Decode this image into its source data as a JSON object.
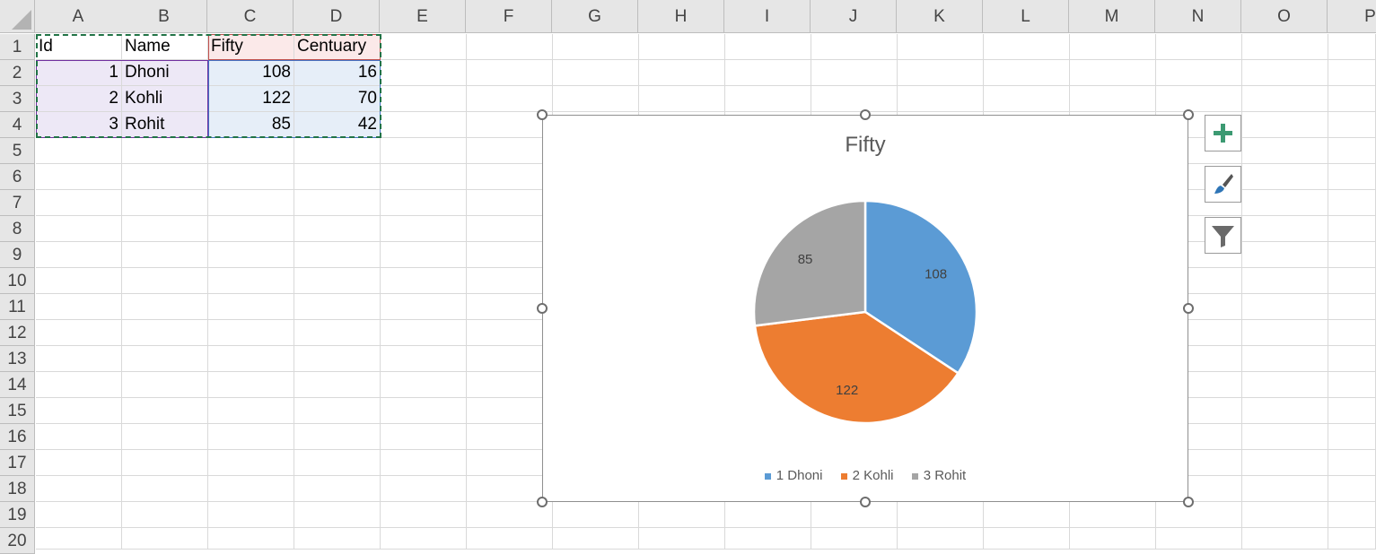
{
  "columns": [
    "A",
    "B",
    "C",
    "D",
    "E",
    "F",
    "G",
    "H",
    "I",
    "J",
    "K",
    "L",
    "M",
    "N",
    "O",
    "P"
  ],
  "rows": [
    "1",
    "2",
    "3",
    "4",
    "5",
    "6",
    "7",
    "8",
    "9",
    "10",
    "11",
    "12",
    "13",
    "14",
    "15",
    "16",
    "17",
    "18",
    "19",
    "20"
  ],
  "table": {
    "header": [
      "Id",
      "Name",
      "Fifty",
      "Centuary"
    ],
    "rows": [
      [
        "1",
        "Dhoni",
        "108",
        "16"
      ],
      [
        "2",
        "Kohli",
        "122",
        "70"
      ],
      [
        "3",
        "Rohit",
        "85",
        "42"
      ]
    ]
  },
  "chart_data": {
    "type": "pie",
    "title": "Fifty",
    "categories": [
      "1 Dhoni",
      "2 Kohli",
      "3 Rohit"
    ],
    "values": [
      108,
      122,
      85
    ],
    "data_labels": [
      "108",
      "122",
      "85"
    ],
    "colors": [
      "#5b9bd5",
      "#ed7d31",
      "#a5a5a5"
    ],
    "legend_position": "bottom"
  },
  "chart_buttons": {
    "add_elements_icon": "plus-icon",
    "styles_icon": "paintbrush-icon",
    "filter_icon": "funnel-icon"
  }
}
